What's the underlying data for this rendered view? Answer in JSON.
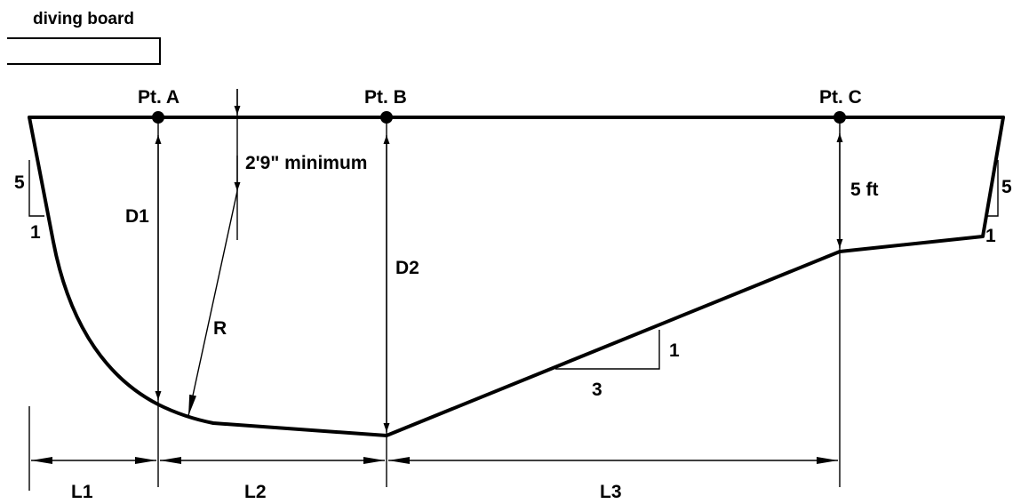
{
  "labels": {
    "diving_board": "diving board",
    "pt_a": "Pt. A",
    "pt_b": "Pt. B",
    "pt_c": "Pt. C",
    "minimum": "2'9\" minimum",
    "d1": "D1",
    "d2": "D2",
    "r": "R",
    "five_ft": "5 ft",
    "slope_rise": "1",
    "slope_run": "3",
    "left_slope_5": "5",
    "left_slope_1": "1",
    "right_slope_5": "5",
    "right_slope_1": "1",
    "l1": "L1",
    "l2": "L2",
    "l3": "L3"
  }
}
